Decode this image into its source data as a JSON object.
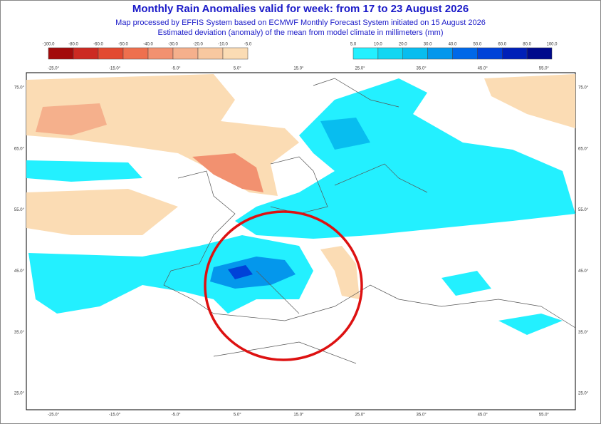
{
  "header": {
    "title": "Monthly Rain Anomalies valid for week: from 17 to 23 August 2026",
    "subtitle_lines": [
      "Map processed by EFFIS System based on ECMWF Monthly Forecast System initiated on 15 August 2026",
      "Estimated deviation (anomaly) of the mean from model climate in millimeters (mm)"
    ]
  },
  "legend": {
    "negative": {
      "labels": [
        "-100.0",
        "-80.0",
        "-60.0",
        "-50.0",
        "-40.0",
        "-30.0",
        "-20.0",
        "-10.0",
        "-5.0"
      ],
      "colors": [
        "#a30b0b",
        "#cc2a22",
        "#e24a30",
        "#ee704e",
        "#f29170",
        "#f5b08c",
        "#f8c8a0",
        "#fbdcb4"
      ]
    },
    "positive": {
      "labels": [
        "5.0",
        "10.0",
        "20.0",
        "30.0",
        "40.0",
        "50.0",
        "60.0",
        "80.0",
        "100.0"
      ],
      "colors": [
        "#23f0ff",
        "#12d6f2",
        "#08bdef",
        "#0497ec",
        "#0068e8",
        "#0042d8",
        "#0020b8",
        "#000a8c"
      ]
    }
  },
  "axes": {
    "longitudes": [
      "-25.0°",
      "-15.0°",
      "-5.0°",
      "5.0°",
      "15.0°",
      "25.0°",
      "35.0°",
      "45.0°",
      "55.0°"
    ],
    "latitudes": [
      "75.0°",
      "65.0°",
      "55.0°",
      "45.0°",
      "35.0°",
      "25.0°"
    ]
  }
}
